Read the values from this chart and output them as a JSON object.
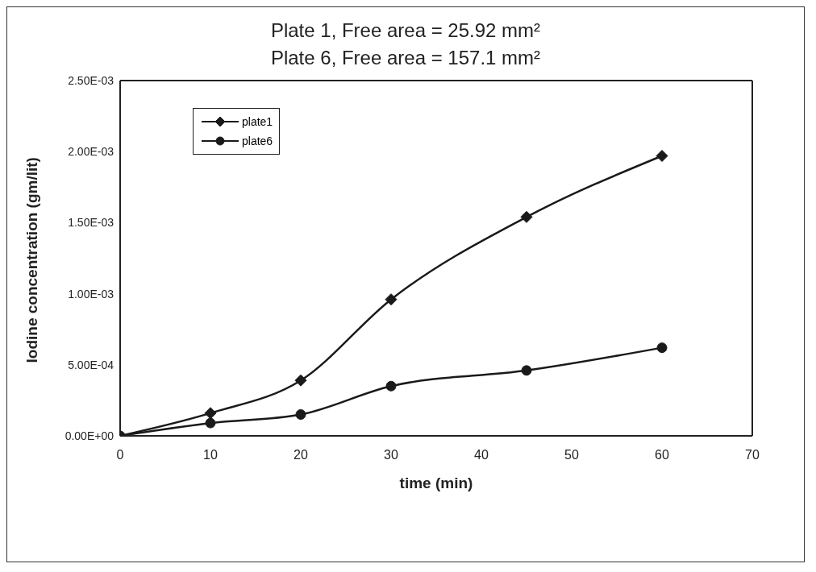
{
  "chart_data": {
    "type": "line",
    "title": "Plate 1, Free area = 25.92 mm²",
    "subtitle": "Plate 6, Free area = 157.1 mm²",
    "xlabel": "time (min)",
    "ylabel": "Iodine concentration (gm/lit)",
    "x": [
      0,
      10,
      20,
      30,
      45,
      60
    ],
    "series": [
      {
        "name": "plate1",
        "color": "#1a1a1a",
        "marker": "diamond",
        "values": [
          0,
          0.00016,
          0.00039,
          0.00096,
          0.00154,
          0.00197
        ]
      },
      {
        "name": "plate6",
        "color": "#1a1a1a",
        "marker": "circle",
        "values": [
          0,
          9e-05,
          0.00015,
          0.00035,
          0.00046,
          0.00062
        ]
      }
    ],
    "xlim": [
      0,
      70
    ],
    "xticks": [
      0,
      10,
      20,
      30,
      40,
      50,
      60,
      70
    ],
    "ylim": [
      0,
      0.0025
    ],
    "yticks": [
      {
        "value": 0,
        "label": "0.00E+00"
      },
      {
        "value": 0.0005,
        "label": "5.00E-04"
      },
      {
        "value": 0.001,
        "label": "1.00E-03"
      },
      {
        "value": 0.0015,
        "label": "1.50E-03"
      },
      {
        "value": 0.002,
        "label": "2.00E-03"
      },
      {
        "value": 0.0025,
        "label": "2.50E-03"
      }
    ],
    "grid": false,
    "legend": "top left",
    "line_style": "solid"
  }
}
